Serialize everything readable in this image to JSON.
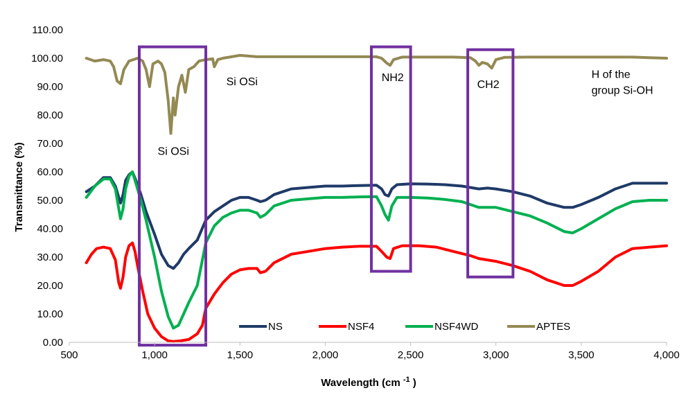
{
  "chart_data": {
    "type": "line",
    "title": "",
    "xlabel": "Wavelength (cm",
    "xlabel_sup": "-1",
    "xlabel_close": ")",
    "ylabel": "Transmittance (%)",
    "xlim": [
      500,
      4000
    ],
    "ylim": [
      0,
      110
    ],
    "x_ticks": [
      500,
      1000,
      1500,
      2000,
      2500,
      3000,
      3500,
      4000
    ],
    "x_tick_labels": [
      "500",
      "1,000",
      "1,500",
      "2,000",
      "2,500",
      "3,000",
      "3,500",
      "4,000"
    ],
    "y_ticks": [
      0,
      10,
      20,
      30,
      40,
      50,
      60,
      70,
      80,
      90,
      100,
      110
    ],
    "y_tick_labels": [
      "0.00",
      "10.00",
      "20.00",
      "30.00",
      "40.00",
      "50.00",
      "60.00",
      "70.00",
      "80.00",
      "90.00",
      "100.00",
      "110.00"
    ],
    "grid": false,
    "legend_position": "bottom-right",
    "series": [
      {
        "name": "NS",
        "color": "#1f3a68",
        "points": [
          [
            600,
            53
          ],
          [
            650,
            55
          ],
          [
            700,
            58
          ],
          [
            740,
            58
          ],
          [
            770,
            55
          ],
          [
            790,
            51
          ],
          [
            800,
            49
          ],
          [
            815,
            52
          ],
          [
            830,
            57
          ],
          [
            850,
            59
          ],
          [
            870,
            60
          ],
          [
            890,
            57
          ],
          [
            920,
            52
          ],
          [
            950,
            46
          ],
          [
            1000,
            38
          ],
          [
            1040,
            31
          ],
          [
            1080,
            27
          ],
          [
            1110,
            26
          ],
          [
            1140,
            28
          ],
          [
            1170,
            31
          ],
          [
            1200,
            33
          ],
          [
            1250,
            36
          ],
          [
            1300,
            43
          ],
          [
            1350,
            46
          ],
          [
            1400,
            48
          ],
          [
            1450,
            50
          ],
          [
            1500,
            51
          ],
          [
            1550,
            51
          ],
          [
            1600,
            50
          ],
          [
            1620,
            49.5
          ],
          [
            1650,
            50
          ],
          [
            1700,
            52
          ],
          [
            1800,
            54
          ],
          [
            1900,
            54.5
          ],
          [
            2000,
            55
          ],
          [
            2100,
            55
          ],
          [
            2200,
            55.2
          ],
          [
            2300,
            55.3
          ],
          [
            2330,
            54
          ],
          [
            2350,
            52
          ],
          [
            2370,
            51.5
          ],
          [
            2390,
            54
          ],
          [
            2420,
            55.5
          ],
          [
            2500,
            55.8
          ],
          [
            2600,
            55.7
          ],
          [
            2700,
            55.5
          ],
          [
            2800,
            55
          ],
          [
            2900,
            54
          ],
          [
            2950,
            54.3
          ],
          [
            3000,
            54
          ],
          [
            3100,
            53
          ],
          [
            3200,
            51.5
          ],
          [
            3300,
            49
          ],
          [
            3400,
            47.5
          ],
          [
            3450,
            47.5
          ],
          [
            3500,
            48.5
          ],
          [
            3600,
            51
          ],
          [
            3700,
            54
          ],
          [
            3800,
            56
          ],
          [
            3900,
            56
          ],
          [
            4000,
            56
          ]
        ]
      },
      {
        "name": "NSF4",
        "color": "#ff0000",
        "points": [
          [
            600,
            28
          ],
          [
            630,
            31
          ],
          [
            660,
            33
          ],
          [
            700,
            33.5
          ],
          [
            740,
            33
          ],
          [
            770,
            29
          ],
          [
            790,
            21
          ],
          [
            800,
            19
          ],
          [
            815,
            23
          ],
          [
            830,
            30
          ],
          [
            850,
            34
          ],
          [
            870,
            35
          ],
          [
            885,
            32
          ],
          [
            900,
            27
          ],
          [
            930,
            18
          ],
          [
            960,
            10
          ],
          [
            1000,
            5
          ],
          [
            1040,
            2
          ],
          [
            1080,
            0.5
          ],
          [
            1110,
            0.3
          ],
          [
            1150,
            0.5
          ],
          [
            1200,
            1
          ],
          [
            1250,
            3
          ],
          [
            1280,
            6
          ],
          [
            1300,
            12
          ],
          [
            1350,
            17
          ],
          [
            1400,
            21
          ],
          [
            1450,
            24
          ],
          [
            1500,
            25.5
          ],
          [
            1550,
            26
          ],
          [
            1600,
            26
          ],
          [
            1620,
            24.5
          ],
          [
            1650,
            25
          ],
          [
            1700,
            28
          ],
          [
            1800,
            31
          ],
          [
            1900,
            32
          ],
          [
            2000,
            33
          ],
          [
            2100,
            33.5
          ],
          [
            2200,
            33.8
          ],
          [
            2300,
            33.8
          ],
          [
            2330,
            32
          ],
          [
            2360,
            30
          ],
          [
            2380,
            29.5
          ],
          [
            2400,
            33
          ],
          [
            2450,
            34
          ],
          [
            2550,
            34
          ],
          [
            2650,
            33.5
          ],
          [
            2750,
            32
          ],
          [
            2850,
            30.5
          ],
          [
            2900,
            29.5
          ],
          [
            2950,
            29
          ],
          [
            3000,
            28.5
          ],
          [
            3100,
            27
          ],
          [
            3200,
            25
          ],
          [
            3300,
            22
          ],
          [
            3400,
            20
          ],
          [
            3450,
            20
          ],
          [
            3500,
            21.5
          ],
          [
            3600,
            25
          ],
          [
            3700,
            30
          ],
          [
            3800,
            33
          ],
          [
            3900,
            33.5
          ],
          [
            4000,
            34
          ]
        ]
      },
      {
        "name": "NSF4WD",
        "color": "#00b050",
        "points": [
          [
            600,
            51
          ],
          [
            650,
            55
          ],
          [
            700,
            57.5
          ],
          [
            740,
            57.5
          ],
          [
            770,
            54
          ],
          [
            790,
            47
          ],
          [
            800,
            43.5
          ],
          [
            815,
            47
          ],
          [
            830,
            54
          ],
          [
            850,
            58.5
          ],
          [
            870,
            60
          ],
          [
            890,
            56
          ],
          [
            920,
            50
          ],
          [
            950,
            43
          ],
          [
            1000,
            30
          ],
          [
            1040,
            18
          ],
          [
            1080,
            9
          ],
          [
            1110,
            5
          ],
          [
            1140,
            6
          ],
          [
            1170,
            10
          ],
          [
            1200,
            14
          ],
          [
            1250,
            20
          ],
          [
            1300,
            35
          ],
          [
            1350,
            41
          ],
          [
            1400,
            44
          ],
          [
            1450,
            45.5
          ],
          [
            1500,
            46.5
          ],
          [
            1550,
            46.5
          ],
          [
            1600,
            45.5
          ],
          [
            1620,
            44
          ],
          [
            1650,
            45
          ],
          [
            1700,
            48
          ],
          [
            1800,
            50
          ],
          [
            1900,
            50.5
          ],
          [
            2000,
            51
          ],
          [
            2100,
            51
          ],
          [
            2200,
            51.2
          ],
          [
            2300,
            51.3
          ],
          [
            2330,
            48
          ],
          [
            2350,
            45
          ],
          [
            2370,
            43
          ],
          [
            2390,
            48
          ],
          [
            2420,
            51
          ],
          [
            2500,
            51
          ],
          [
            2600,
            50.8
          ],
          [
            2700,
            50.3
          ],
          [
            2800,
            49.5
          ],
          [
            2900,
            47.5
          ],
          [
            2950,
            47.5
          ],
          [
            3000,
            47.5
          ],
          [
            3100,
            46
          ],
          [
            3200,
            44.5
          ],
          [
            3300,
            42
          ],
          [
            3400,
            39
          ],
          [
            3450,
            38.5
          ],
          [
            3500,
            40
          ],
          [
            3600,
            43.5
          ],
          [
            3700,
            47
          ],
          [
            3800,
            49.5
          ],
          [
            3900,
            50
          ],
          [
            4000,
            50
          ]
        ]
      },
      {
        "name": "APTES",
        "color": "#938953",
        "points": [
          [
            600,
            100
          ],
          [
            650,
            99
          ],
          [
            700,
            99.5
          ],
          [
            740,
            99
          ],
          [
            760,
            97
          ],
          [
            780,
            92
          ],
          [
            800,
            91
          ],
          [
            820,
            96
          ],
          [
            850,
            99
          ],
          [
            900,
            100
          ],
          [
            930,
            99
          ],
          [
            950,
            96
          ],
          [
            970,
            90
          ],
          [
            990,
            98
          ],
          [
            1020,
            99
          ],
          [
            1040,
            98
          ],
          [
            1060,
            95
          ],
          [
            1080,
            85
          ],
          [
            1095,
            73.5
          ],
          [
            1110,
            86
          ],
          [
            1120,
            80
          ],
          [
            1140,
            90
          ],
          [
            1160,
            94
          ],
          [
            1180,
            88
          ],
          [
            1200,
            96
          ],
          [
            1230,
            97
          ],
          [
            1260,
            99
          ],
          [
            1300,
            99.5
          ],
          [
            1340,
            99.8
          ],
          [
            1350,
            97
          ],
          [
            1370,
            99.5
          ],
          [
            1400,
            100
          ],
          [
            1500,
            101
          ],
          [
            1600,
            100.5
          ],
          [
            1700,
            100.5
          ],
          [
            1800,
            100.5
          ],
          [
            1900,
            100.5
          ],
          [
            2000,
            100.5
          ],
          [
            2100,
            100.5
          ],
          [
            2200,
            100.5
          ],
          [
            2300,
            100.5
          ],
          [
            2330,
            100
          ],
          [
            2360,
            98.3
          ],
          [
            2380,
            97.5
          ],
          [
            2400,
            99.5
          ],
          [
            2450,
            100.4
          ],
          [
            2550,
            100.4
          ],
          [
            2650,
            100.4
          ],
          [
            2750,
            100.4
          ],
          [
            2850,
            100.2
          ],
          [
            2880,
            99
          ],
          [
            2900,
            97.5
          ],
          [
            2920,
            98.5
          ],
          [
            2950,
            98
          ],
          [
            2975,
            96.5
          ],
          [
            3000,
            99.5
          ],
          [
            3050,
            100.3
          ],
          [
            3200,
            100.4
          ],
          [
            3400,
            100.4
          ],
          [
            3600,
            100.4
          ],
          [
            3800,
            100.4
          ],
          [
            3900,
            100.2
          ],
          [
            4000,
            100
          ]
        ]
      }
    ],
    "annotations": [
      {
        "text": "Si OSi",
        "x": 1110,
        "y": 66
      },
      {
        "text": "Si OSi",
        "x": 1420,
        "y": 90.5
      },
      {
        "text": "NH2",
        "x": 2330,
        "y": 92
      },
      {
        "text": "CH2",
        "x": 2890,
        "y": 89.5
      },
      {
        "text": "H of the",
        "x": 3560,
        "y": 93
      },
      {
        "text": "group Si-OH",
        "x": 3560,
        "y": 87.5
      }
    ],
    "highlight_boxes": [
      {
        "x0": 910,
        "x1": 1300,
        "y0": -1,
        "y1": 104,
        "color": "#7030a0"
      },
      {
        "x0": 2270,
        "x1": 2500,
        "y0": 25,
        "y1": 104,
        "color": "#7030a0"
      },
      {
        "x0": 2835,
        "x1": 3100,
        "y0": 23,
        "y1": 103,
        "color": "#7030a0"
      }
    ]
  }
}
